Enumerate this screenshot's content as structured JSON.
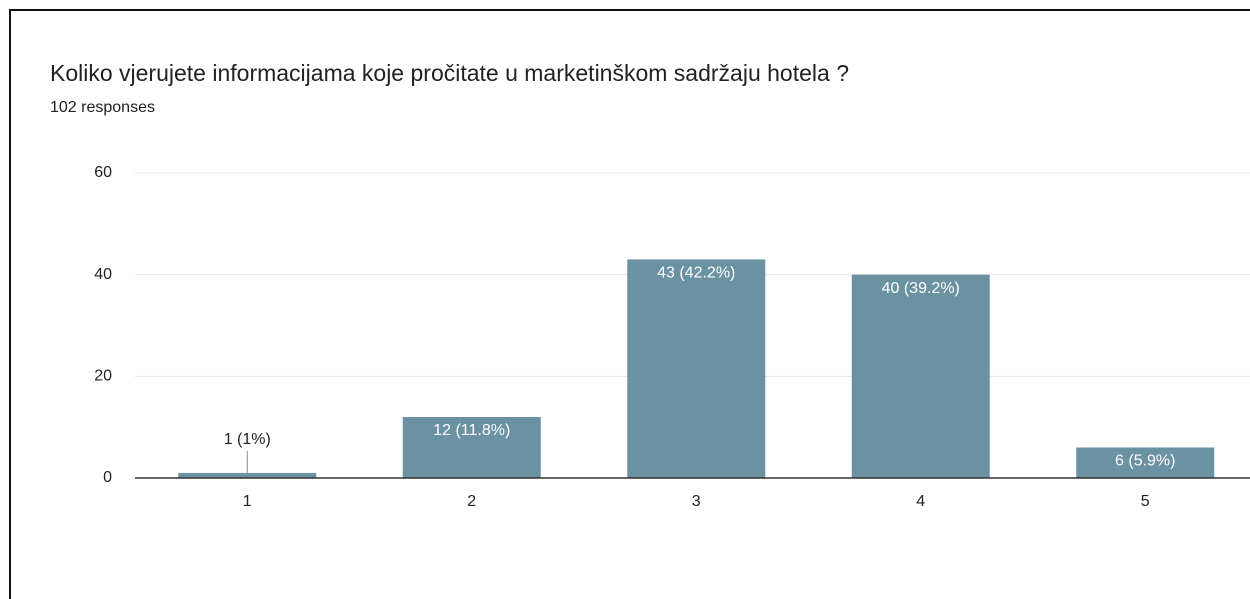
{
  "chart_data": {
    "type": "bar",
    "title": "Koliko vjerujete informacijama koje pročitate u marketinškom sadržaju hotela ?",
    "subtitle": "102 responses",
    "categories": [
      "1",
      "2",
      "3",
      "4",
      "5"
    ],
    "values": [
      1,
      12,
      43,
      40,
      6
    ],
    "value_labels": [
      "1 (1%)",
      "12 (11.8%)",
      "43 (42.2%)",
      "40 (39.2%)",
      "6 (5.9%)"
    ],
    "color": "#6b92a3",
    "ylim": [
      0,
      60
    ],
    "yticks": [
      0,
      20,
      40,
      60
    ],
    "grid": true
  }
}
